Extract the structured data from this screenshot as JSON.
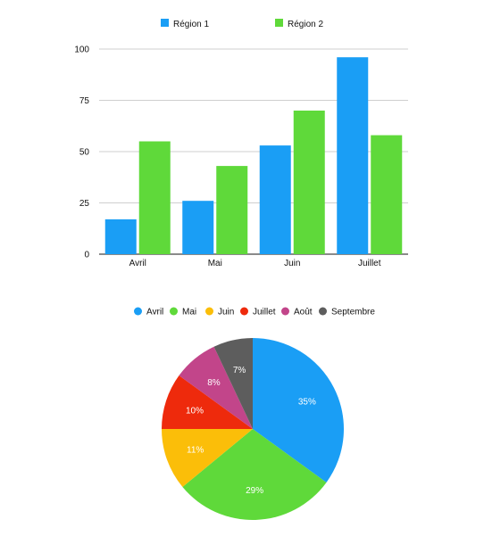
{
  "chart_data": [
    {
      "type": "bar",
      "title": "",
      "xlabel": "",
      "ylabel": "",
      "categories": [
        "Avril",
        "Mai",
        "Juin",
        "Juillet"
      ],
      "series": [
        {
          "name": "Région 1",
          "color": "#1a9ef5",
          "values": [
            17,
            26,
            53,
            96
          ]
        },
        {
          "name": "Région 2",
          "color": "#5fd93a",
          "values": [
            55,
            43,
            70,
            58
          ]
        }
      ],
      "ylim": [
        0,
        100
      ],
      "yticks": [
        0,
        25,
        50,
        75,
        100
      ],
      "grid": true,
      "legend": "top"
    },
    {
      "type": "pie",
      "title": "",
      "legend": "top",
      "slices": [
        {
          "name": "Avril",
          "color": "#1a9ef5",
          "value": 35,
          "label": "35%"
        },
        {
          "name": "Mai",
          "color": "#5fd93a",
          "value": 29,
          "label": "29%"
        },
        {
          "name": "Juin",
          "color": "#fbbe09",
          "value": 11,
          "label": "11%"
        },
        {
          "name": "Juillet",
          "color": "#ee2a0c",
          "value": 10,
          "label": "10%"
        },
        {
          "name": "Août",
          "color": "#c2458a",
          "value": 8,
          "label": "8%"
        },
        {
          "name": "Septembre",
          "color": "#5d5d5d",
          "value": 7,
          "label": "7%"
        }
      ]
    }
  ]
}
